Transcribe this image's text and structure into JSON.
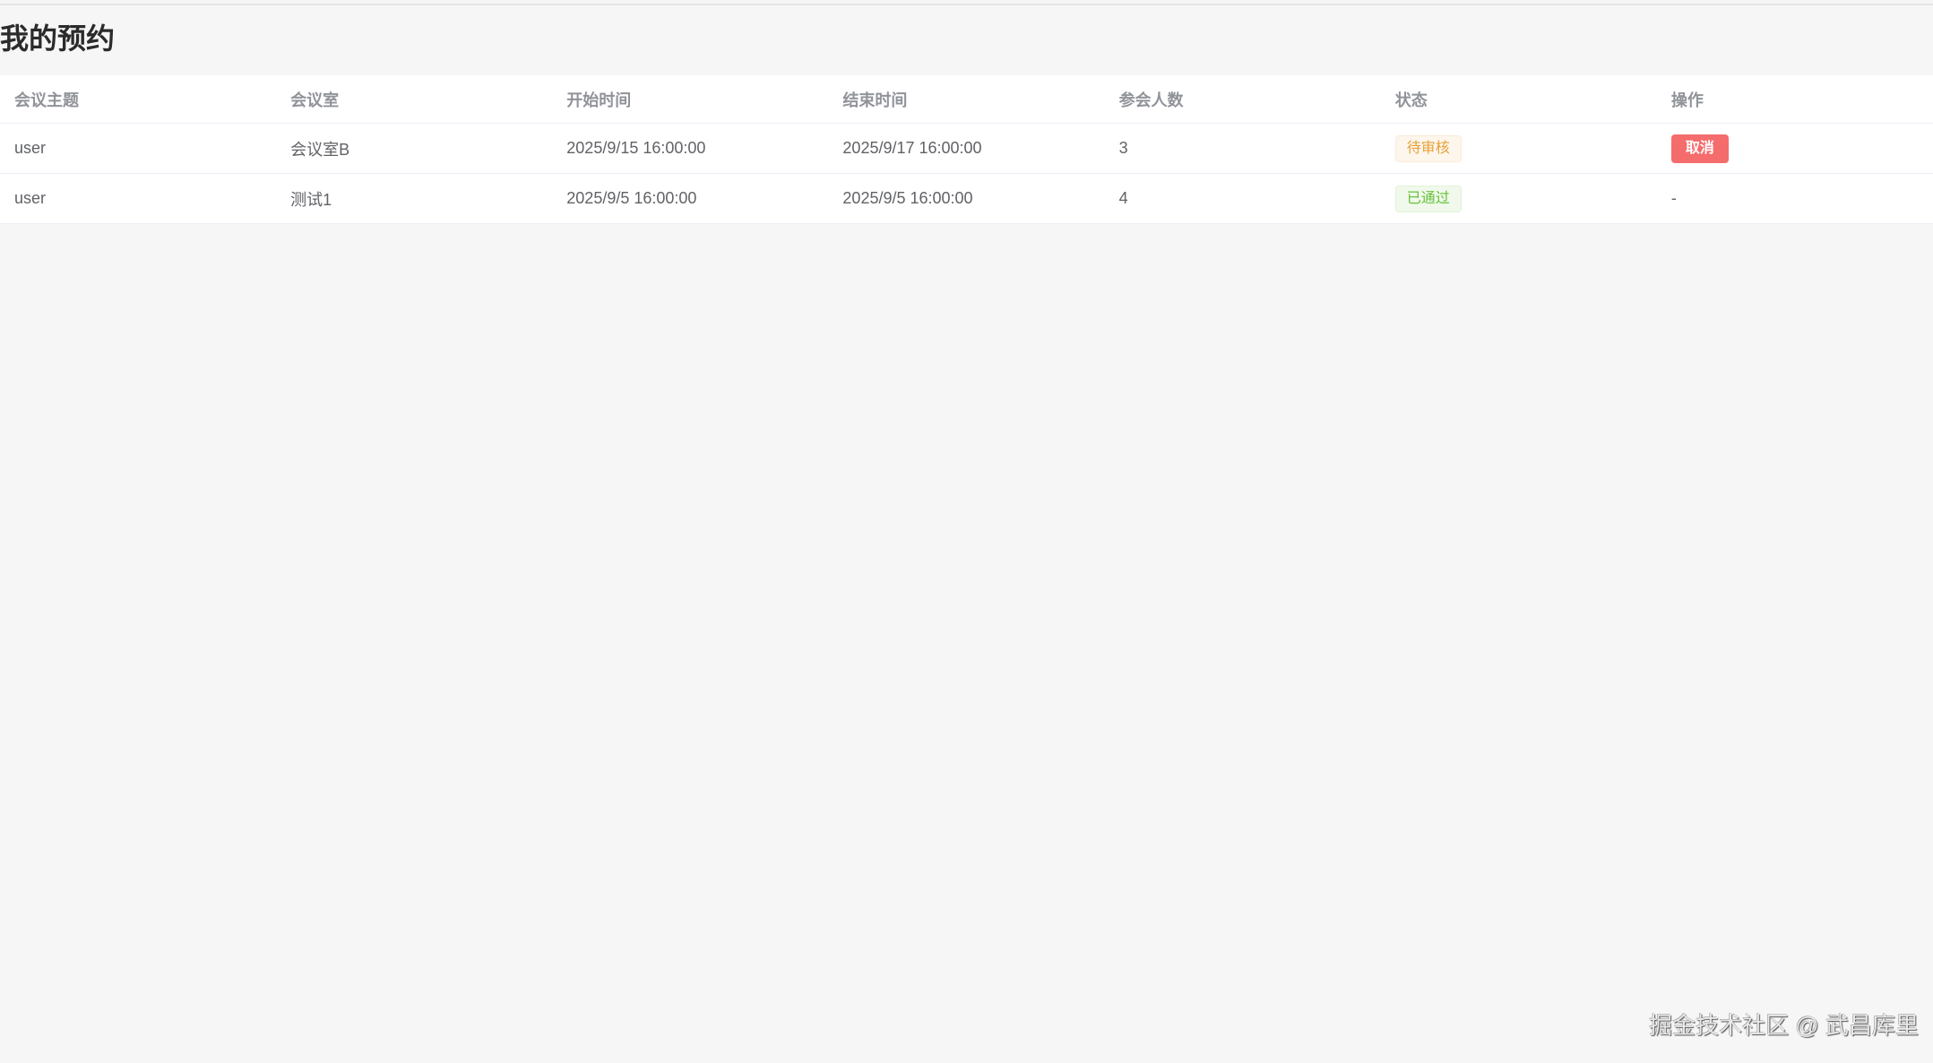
{
  "page": {
    "title": "我的预约"
  },
  "table": {
    "columns": [
      "会议主题",
      "会议室",
      "开始时间",
      "结束时间",
      "参会人数",
      "状态",
      "操作"
    ],
    "rows": [
      {
        "topic": "user",
        "room": "会议室B",
        "start": "2025/9/15 16:00:00",
        "end": "2025/9/17 16:00:00",
        "attendees": "3",
        "status": "待审核",
        "status_type": "warning",
        "action": "取消"
      },
      {
        "topic": "user",
        "room": "测试1",
        "start": "2025/9/5 16:00:00",
        "end": "2025/9/5 16:00:00",
        "attendees": "4",
        "status": "已通过",
        "status_type": "success",
        "action": "-"
      }
    ]
  },
  "watermark": "掘金技术社区 @ 武昌库里",
  "colors": {
    "warning": "#e6a23c",
    "success": "#67c23a",
    "danger": "#f56c6c"
  }
}
